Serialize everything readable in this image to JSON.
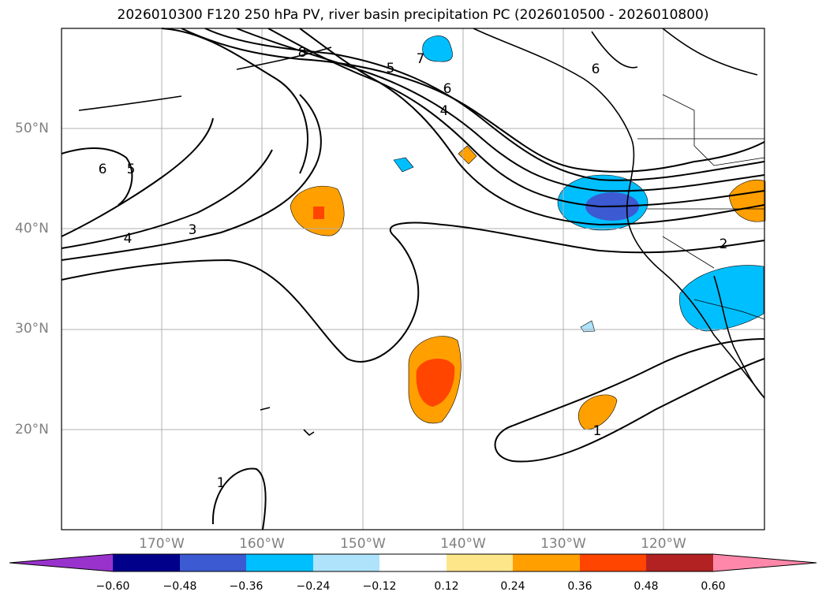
{
  "title": "2026010300 F120 250 hPa PV, river basin precipitation PC (2026010500 - 2026010800)",
  "map": {
    "lat_labels": [
      "50°N",
      "40°N",
      "30°N",
      "20°N"
    ],
    "lon_labels": [
      "170°W",
      "160°W",
      "150°W",
      "140°W",
      "130°W",
      "120°W"
    ],
    "contour_labels": [
      "6",
      "5",
      "4",
      "3",
      "8",
      "7",
      "5",
      "6",
      "4",
      "6",
      "2",
      "1",
      "1"
    ],
    "gridline_color": "#b0b0b0",
    "label_color": "#808080"
  },
  "colorbar": {
    "ticks": [
      "−0.60",
      "−0.48",
      "−0.36",
      "−0.24",
      "−0.12",
      "0.12",
      "0.24",
      "0.36",
      "0.48",
      "0.60"
    ],
    "colors": [
      "#9932cc",
      "#00008b",
      "#3c5ad2",
      "#00bfff",
      "#aee3fb",
      "#ffffff",
      "#fde68a",
      "#ffa000",
      "#ff4500",
      "#b22222",
      "#ff88aa"
    ]
  }
}
